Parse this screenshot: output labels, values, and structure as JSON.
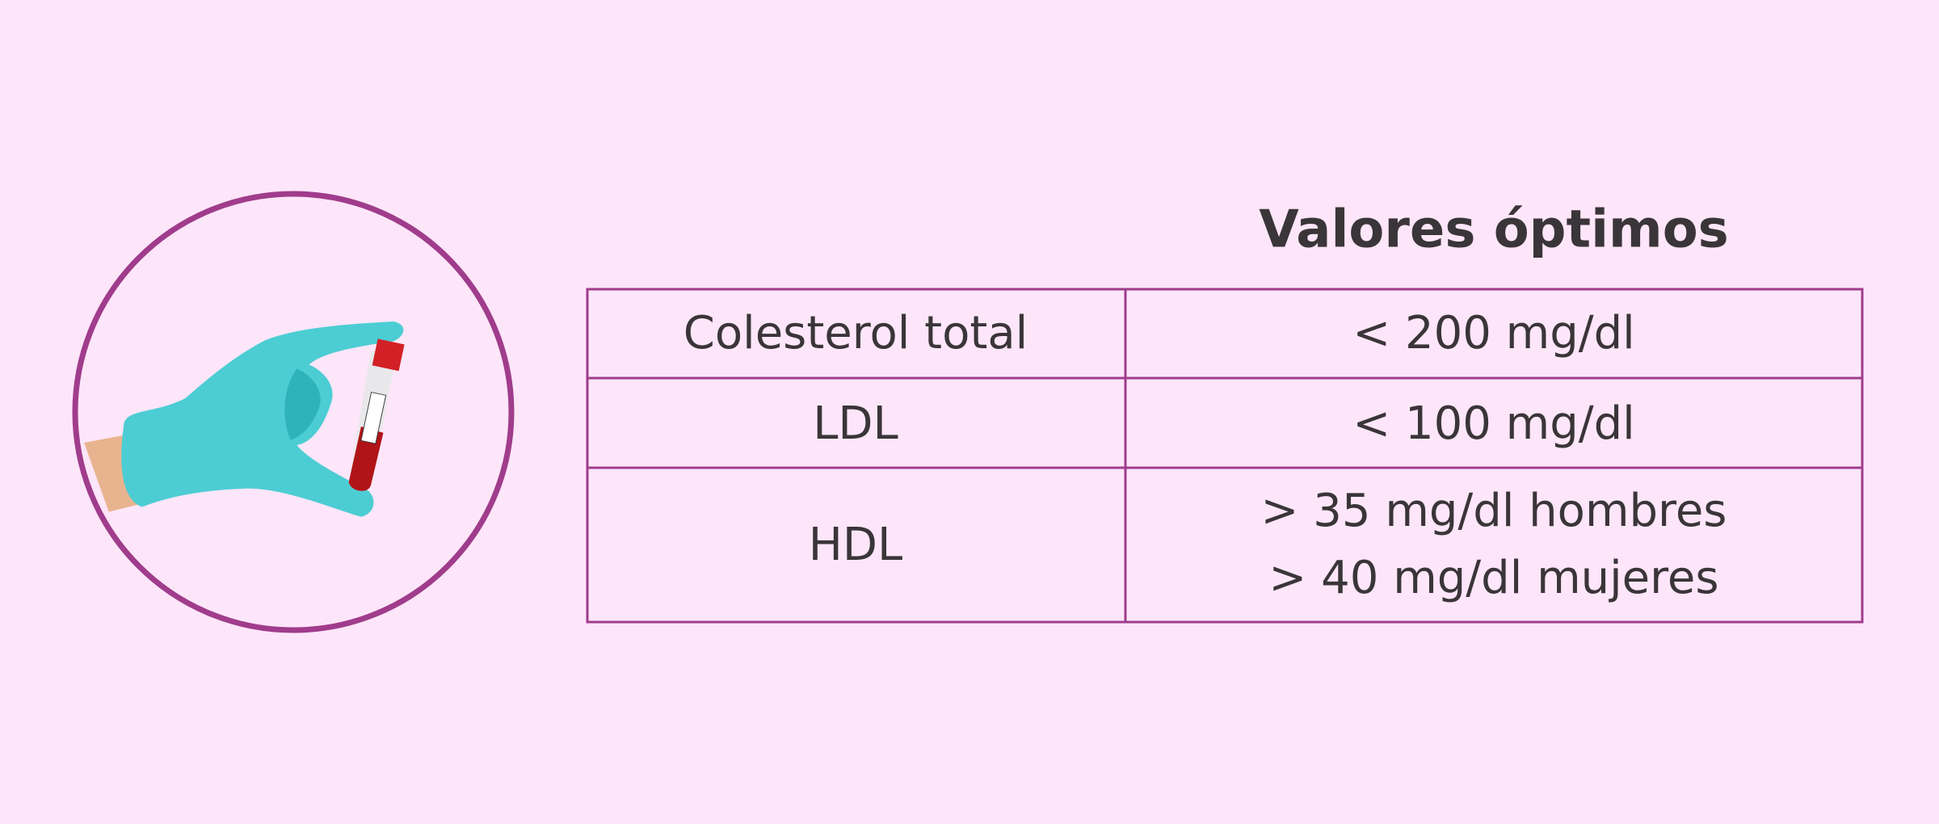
{
  "header": {
    "title": "Valores óptimos"
  },
  "table": {
    "rows": [
      [
        "Colesterol total",
        "< 200 mg/dl"
      ],
      [
        "LDL",
        "< 100 mg/dl"
      ],
      [
        "HDL",
        [
          "> 35 mg/dl hombres",
          "> 40 mg/dl mujeres"
        ]
      ]
    ]
  }
}
